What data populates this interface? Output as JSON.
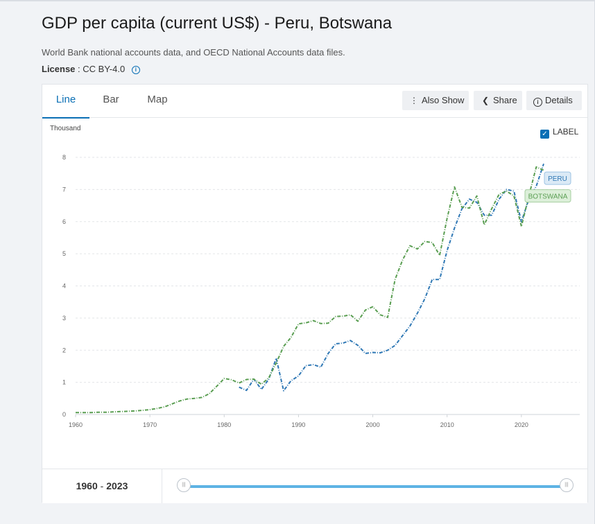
{
  "header": {
    "title": "GDP per capita (current US$) - Peru, Botswana",
    "source": "World Bank national accounts data, and OECD National Accounts data files.",
    "license_label": "License",
    "license_value": ": CC BY-4.0"
  },
  "tabs": [
    {
      "label": "Line",
      "active": true
    },
    {
      "label": "Bar",
      "active": false
    },
    {
      "label": "Map",
      "active": false
    }
  ],
  "toolbar": {
    "also_show": "Also Show",
    "share": "Share",
    "details": "Details"
  },
  "label_toggle": {
    "label": "LABEL",
    "checked": true
  },
  "range": {
    "start": "1960",
    "sep": " - ",
    "end": "2023"
  },
  "colors": {
    "peru": "#2f78b5",
    "botswana": "#5a9e52",
    "accent": "#0a6fb5"
  },
  "chart_data": {
    "type": "line",
    "unit_label": "Thousand",
    "xlim": [
      1960,
      2023
    ],
    "ylim": [
      0,
      8
    ],
    "x_ticks": [
      1960,
      1970,
      1980,
      1990,
      2000,
      2010,
      2020
    ],
    "y_ticks": [
      0,
      1,
      2,
      3,
      4,
      5,
      6,
      7,
      8
    ],
    "grid": true,
    "series": [
      {
        "name": "PERU",
        "color": "#2f78b5",
        "x": [
          1982,
          1983,
          1984,
          1985,
          1986,
          1987,
          1988,
          1989,
          1990,
          1991,
          1992,
          1993,
          1994,
          1995,
          1996,
          1997,
          1998,
          1999,
          2000,
          2001,
          2002,
          2003,
          2004,
          2005,
          2006,
          2007,
          2008,
          2009,
          2010,
          2011,
          2012,
          2013,
          2014,
          2015,
          2016,
          2017,
          2018,
          2019,
          2020,
          2021,
          2022,
          2023
        ],
        "values": [
          0.85,
          0.75,
          1.1,
          0.78,
          1.1,
          1.75,
          0.74,
          1.05,
          1.2,
          1.52,
          1.55,
          1.47,
          1.9,
          2.2,
          2.22,
          2.3,
          2.15,
          1.9,
          1.93,
          1.92,
          2.0,
          2.15,
          2.45,
          2.75,
          3.15,
          3.6,
          4.2,
          4.2,
          5.1,
          5.8,
          6.4,
          6.7,
          6.6,
          6.2,
          6.2,
          6.7,
          7.0,
          6.95,
          6.0,
          6.7,
          7.1,
          7.8
        ]
      },
      {
        "name": "BOTSWANA",
        "color": "#5a9e52",
        "x": [
          1960,
          1961,
          1962,
          1963,
          1964,
          1965,
          1966,
          1967,
          1968,
          1969,
          1970,
          1971,
          1972,
          1973,
          1974,
          1975,
          1976,
          1977,
          1978,
          1979,
          1980,
          1981,
          1982,
          1983,
          1984,
          1985,
          1986,
          1987,
          1988,
          1989,
          1990,
          1991,
          1992,
          1993,
          1994,
          1995,
          1996,
          1997,
          1998,
          1999,
          2000,
          2001,
          2002,
          2003,
          2004,
          2005,
          2006,
          2007,
          2008,
          2009,
          2010,
          2011,
          2012,
          2013,
          2014,
          2015,
          2016,
          2017,
          2018,
          2019,
          2020,
          2021,
          2022,
          2023
        ],
        "values": [
          0.06,
          0.06,
          0.06,
          0.07,
          0.07,
          0.08,
          0.09,
          0.1,
          0.11,
          0.13,
          0.15,
          0.19,
          0.24,
          0.33,
          0.42,
          0.48,
          0.5,
          0.53,
          0.65,
          0.88,
          1.12,
          1.08,
          0.98,
          1.09,
          1.1,
          0.94,
          1.14,
          1.6,
          2.12,
          2.4,
          2.82,
          2.85,
          2.92,
          2.83,
          2.84,
          3.05,
          3.06,
          3.1,
          2.9,
          3.25,
          3.35,
          3.1,
          3.02,
          4.2,
          4.8,
          5.25,
          5.15,
          5.38,
          5.35,
          4.95,
          6.1,
          7.08,
          6.45,
          6.42,
          6.8,
          5.9,
          6.4,
          6.85,
          6.95,
          6.8,
          5.85,
          6.8,
          7.7,
          7.6
        ]
      }
    ],
    "labels": [
      "PERU",
      "BOTSWANA"
    ]
  }
}
